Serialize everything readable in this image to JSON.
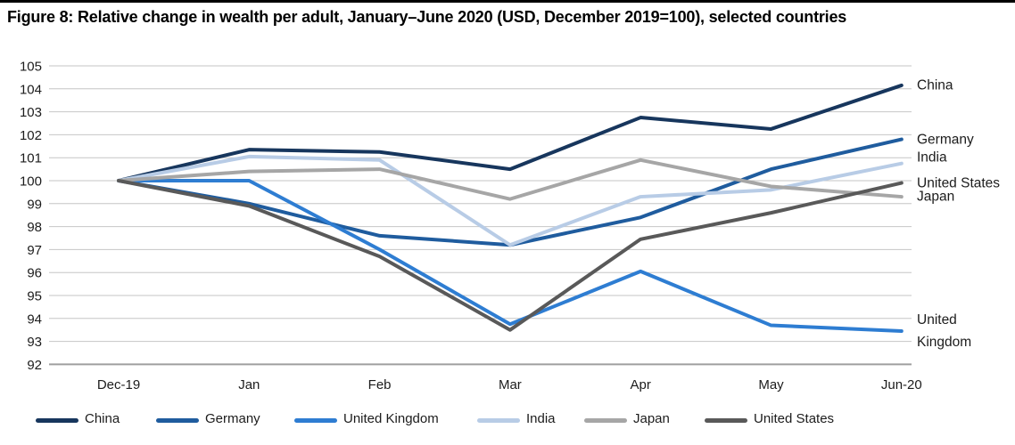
{
  "title": "Figure 8: Relative change in wealth per adult, January–June 2020 (USD, December 2019=100), selected countries",
  "chart_data": {
    "type": "line",
    "title": "Figure 8: Relative change in wealth per adult, January–June 2020 (USD, December 2019=100), selected countries",
    "x_labels": [
      "Dec-19",
      "Jan",
      "Feb",
      "Mar",
      "Apr",
      "May",
      "Jun-20"
    ],
    "y_ticks": [
      105,
      104,
      103,
      102,
      101,
      100,
      99,
      98,
      97,
      96,
      95,
      94,
      93,
      92
    ],
    "ylim": [
      92,
      105
    ],
    "grid": "horizontal-only",
    "legend_position": "bottom",
    "baseline_note": "December 2019 = 100",
    "series": [
      {
        "name": "China",
        "color": "#17365d",
        "values": [
          100,
          101.35,
          101.25,
          100.5,
          102.75,
          102.25,
          104.15
        ],
        "end_label": [
          "China"
        ]
      },
      {
        "name": "Germany",
        "color": "#1f5c9e",
        "values": [
          100,
          99.0,
          97.6,
          97.2,
          98.4,
          100.5,
          101.8
        ],
        "end_label": [
          "Germany"
        ]
      },
      {
        "name": "United Kingdom",
        "color": "#2e7dd2",
        "values": [
          100,
          100.0,
          97.0,
          93.75,
          96.05,
          93.7,
          93.45
        ],
        "end_label": [
          "United",
          "Kingdom"
        ]
      },
      {
        "name": "India",
        "color": "#b8cce6",
        "values": [
          100,
          101.05,
          100.9,
          97.2,
          99.3,
          99.6,
          100.75
        ],
        "end_label": [
          "India"
        ]
      },
      {
        "name": "Japan",
        "color": "#a6a6a6",
        "values": [
          100,
          100.4,
          100.5,
          99.2,
          100.9,
          99.75,
          99.3
        ],
        "end_label": [
          "Japan"
        ]
      },
      {
        "name": "United States",
        "color": "#595959",
        "values": [
          100,
          98.9,
          96.7,
          93.5,
          97.45,
          98.6,
          99.9
        ],
        "end_label": [
          "United States"
        ]
      }
    ],
    "legend": [
      "China",
      "Germany",
      "United Kingdom",
      "India",
      "Japan",
      "United States"
    ]
  }
}
